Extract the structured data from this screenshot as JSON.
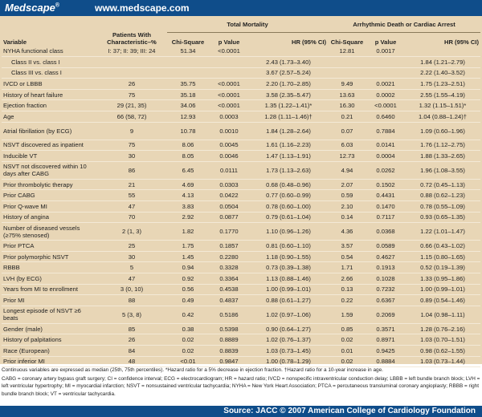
{
  "header": {
    "logo": "Medscape",
    "logo_mark": "®",
    "site_url": "www.medscape.com"
  },
  "table": {
    "group_headers": {
      "total_mortality": "Total Mortality",
      "arrhythmic": "Arrhythmic Death or Cardiac Arrest"
    },
    "columns": {
      "variable": "Variable",
      "patients": "Patients With Characteristic–%",
      "chi_square": "Chi-Square",
      "p_value": "p Value",
      "hr": "HR (95% CI)"
    },
    "rows": [
      {
        "variable": "NYHA functional class",
        "patients": "I: 37; II: 39; III: 24",
        "tm_chi": "51.34",
        "tm_p": "<0.0001",
        "tm_hr": "",
        "ar_chi": "12.81",
        "ar_p": "0.0017",
        "ar_hr": ""
      },
      {
        "variable": "Class II vs. class I",
        "patients": "",
        "tm_chi": "",
        "tm_p": "",
        "tm_hr": "2.43 (1.73–3.40)",
        "ar_chi": "",
        "ar_p": "",
        "ar_hr": "1.84 (1.21–2.79)"
      },
      {
        "variable": "Class III vs. class I",
        "patients": "",
        "tm_chi": "",
        "tm_p": "",
        "tm_hr": "3.67 (2.57–5.24)",
        "ar_chi": "",
        "ar_p": "",
        "ar_hr": "2.22 (1.40–3.52)"
      },
      {
        "variable": "IVCD or LBBB",
        "patients": "26",
        "tm_chi": "35.75",
        "tm_p": "<0.0001",
        "tm_hr": "2.20 (1.70–2.85)",
        "ar_chi": "9.49",
        "ar_p": "0.0021",
        "ar_hr": "1.75 (1.23–2.51)"
      },
      {
        "variable": "History of heart failure",
        "patients": "75",
        "tm_chi": "35.18",
        "tm_p": "<0.0001",
        "tm_hr": "3.58 (2.35–5.47)",
        "ar_chi": "13.63",
        "ar_p": "0.0002",
        "ar_hr": "2.55 (1.55–4.19)"
      },
      {
        "variable": "Ejection fraction",
        "patients": "29 (21, 35)",
        "tm_chi": "34.06",
        "tm_p": "<0.0001",
        "tm_hr": "1.35 (1.22–1.41)*",
        "ar_chi": "16.30",
        "ar_p": "<0.0001",
        "ar_hr": "1.32 (1.15–1.51)*"
      },
      {
        "variable": "Age",
        "patients": "66 (58, 72)",
        "tm_chi": "12.93",
        "tm_p": "0.0003",
        "tm_hr": "1.28 (1.11–1.46)†",
        "ar_chi": "0.21",
        "ar_p": "0.6460",
        "ar_hr": "1.04 (0.88–1.24)†"
      },
      {
        "variable": "Atrial fibrillation (by ECG)",
        "patients": "9",
        "tm_chi": "10.78",
        "tm_p": "0.0010",
        "tm_hr": "1.84 (1.28–2.64)",
        "ar_chi": "0.07",
        "ar_p": "0.7884",
        "ar_hr": "1.09 (0.60–1.96)"
      },
      {
        "variable": "NSVT discovered as inpatient",
        "patients": "75",
        "tm_chi": "8.06",
        "tm_p": "0.0045",
        "tm_hr": "1.61 (1.16–2.23)",
        "ar_chi": "6.03",
        "ar_p": "0.0141",
        "ar_hr": "1.76 (1.12–2.75)"
      },
      {
        "variable": "Inducible VT",
        "patients": "30",
        "tm_chi": "8.05",
        "tm_p": "0.0046",
        "tm_hr": "1.47 (1.13–1.91)",
        "ar_chi": "12.73",
        "ar_p": "0.0004",
        "ar_hr": "1.88 (1.33–2.65)"
      },
      {
        "variable": "NSVT not discovered within 10 days after CABG",
        "patients": "86",
        "tm_chi": "6.45",
        "tm_p": "0.0111",
        "tm_hr": "1.73 (1.13–2.63)",
        "ar_chi": "4.94",
        "ar_p": "0.0262",
        "ar_hr": "1.96 (1.08–3.55)"
      },
      {
        "variable": "Prior thrombolytic therapy",
        "patients": "21",
        "tm_chi": "4.69",
        "tm_p": "0.0303",
        "tm_hr": "0.68 (0.48–0.96)",
        "ar_chi": "2.07",
        "ar_p": "0.1502",
        "ar_hr": "0.72 (0.45–1.13)"
      },
      {
        "variable": "Prior CABG",
        "patients": "55",
        "tm_chi": "4.13",
        "tm_p": "0.0422",
        "tm_hr": "0.77 (0.60–0.99)",
        "ar_chi": "0.59",
        "ar_p": "0.4431",
        "ar_hr": "0.88 (0.62–1.23)"
      },
      {
        "variable": "Prior Q-wave MI",
        "patients": "47",
        "tm_chi": "3.83",
        "tm_p": "0.0504",
        "tm_hr": "0.78 (0.60–1.00)",
        "ar_chi": "2.10",
        "ar_p": "0.1470",
        "ar_hr": "0.78 (0.55–1.09)"
      },
      {
        "variable": "History of angina",
        "patients": "70",
        "tm_chi": "2.92",
        "tm_p": "0.0877",
        "tm_hr": "0.79 (0.61–1.04)",
        "ar_chi": "0.14",
        "ar_p": "0.7117",
        "ar_hr": "0.93 (0.65–1.35)"
      },
      {
        "variable": "Number of diseased vessels (≥75% stenosed)",
        "patients": "2 (1, 3)",
        "tm_chi": "1.82",
        "tm_p": "0.1770",
        "tm_hr": "1.10 (0.96–1.26)",
        "ar_chi": "4.36",
        "ar_p": "0.0368",
        "ar_hr": "1.22 (1.01–1.47)"
      },
      {
        "variable": "Prior PTCA",
        "patients": "25",
        "tm_chi": "1.75",
        "tm_p": "0.1857",
        "tm_hr": "0.81 (0.60–1.10)",
        "ar_chi": "3.57",
        "ar_p": "0.0589",
        "ar_hr": "0.66 (0.43–1.02)"
      },
      {
        "variable": "Prior polymorphic NSVT",
        "patients": "30",
        "tm_chi": "1.45",
        "tm_p": "0.2280",
        "tm_hr": "1.18 (0.90–1.55)",
        "ar_chi": "0.54",
        "ar_p": "0.4627",
        "ar_hr": "1.15 (0.80–1.65)"
      },
      {
        "variable": "RBBB",
        "patients": "5",
        "tm_chi": "0.94",
        "tm_p": "0.3328",
        "tm_hr": "0.73 (0.39–1.38)",
        "ar_chi": "1.71",
        "ar_p": "0.1913",
        "ar_hr": "0.52 (0.19–1.39)"
      },
      {
        "variable": "LVH (by ECG)",
        "patients": "47",
        "tm_chi": "0.92",
        "tm_p": "0.3364",
        "tm_hr": "1.13 (0.88–1.46)",
        "ar_chi": "2.66",
        "ar_p": "0.1028",
        "ar_hr": "1.33 (0.95–1.86)"
      },
      {
        "variable": "Years from MI to enrollment",
        "patients": "3 (0, 10)",
        "tm_chi": "0.56",
        "tm_p": "0.4538",
        "tm_hr": "1.00 (0.99–1.01)",
        "ar_chi": "0.13",
        "ar_p": "0.7232",
        "ar_hr": "1.00 (0.99–1.01)"
      },
      {
        "variable": "Prior MI",
        "patients": "88",
        "tm_chi": "0.49",
        "tm_p": "0.4837",
        "tm_hr": "0.88 (0.61–1.27)",
        "ar_chi": "0.22",
        "ar_p": "0.6367",
        "ar_hr": "0.89 (0.54–1.46)"
      },
      {
        "variable": "Longest episode of NSVT ≥6 beats",
        "patients": "5 (3, 8)",
        "tm_chi": "0.42",
        "tm_p": "0.5186",
        "tm_hr": "1.02 (0.97–1.06)",
        "ar_chi": "1.59",
        "ar_p": "0.2069",
        "ar_hr": "1.04 (0.98–1.11)"
      },
      {
        "variable": "Gender (male)",
        "patients": "85",
        "tm_chi": "0.38",
        "tm_p": "0.5398",
        "tm_hr": "0.90 (0.64–1.27)",
        "ar_chi": "0.85",
        "ar_p": "0.3571",
        "ar_hr": "1.28 (0.76–2.16)"
      },
      {
        "variable": "History of palpitations",
        "patients": "26",
        "tm_chi": "0.02",
        "tm_p": "0.8889",
        "tm_hr": "1.02 (0.76–1.37)",
        "ar_chi": "0.02",
        "ar_p": "0.8971",
        "ar_hr": "1.03 (0.70–1.51)"
      },
      {
        "variable": "Race (European)",
        "patients": "84",
        "tm_chi": "0.02",
        "tm_p": "0.8839",
        "tm_hr": "1.03 (0.73–1.45)",
        "ar_chi": "0.01",
        "ar_p": "0.9425",
        "ar_hr": "0.98 (0.62–1.55)"
      },
      {
        "variable": "Prior inferior MI",
        "patients": "48",
        "tm_chi": "<0.01",
        "tm_p": "0.9847",
        "tm_hr": "1.00 (0.78–1.29)",
        "ar_chi": "0.02",
        "ar_p": "0.8884",
        "ar_hr": "1.03 (0.73–1.44)"
      }
    ]
  },
  "footnotes": {
    "line1": "Continuous variables are expressed as median (25th, 75th percentiles). *Hazard ratio for a 5% decrease in ejection fraction. †Hazard ratio for a 10-year increase in age.",
    "line2": "CABG = coronary artery bypass graft surgery; CI = confidence interval; ECG = electrocardiogram; HR = hazard ratio; IVCD = nonspecific intraventricular conduction delay; LBBB = left bundle branch block; LVH = left ventricular hypertrophy; MI = myocardial infarction; NSVT = nonsustained ventricular tachycardia; NYHA = New York Heart Association; PTCA = percutaneous transluminal coronary angioplasty; RBBB = right bundle branch block; VT = ventricular tachycardia."
  },
  "footer": {
    "source": "Source: JACC © 2007 American College of Cardiology Foundation"
  }
}
